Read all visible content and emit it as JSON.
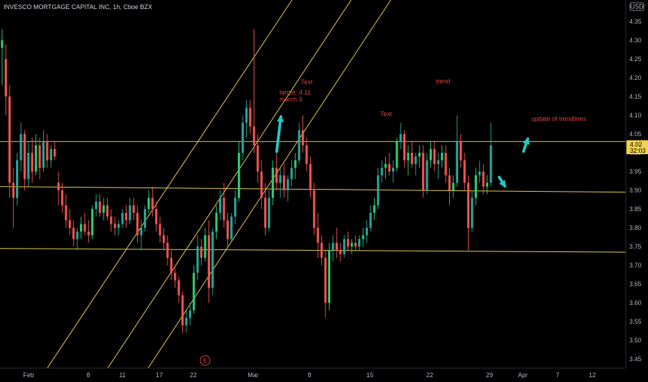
{
  "header": {
    "title": "INVESCO MORTGAGE CAPITAL INC, 1h, Cboe BZX",
    "currency_badge": "USD"
  },
  "colors": {
    "background": "#000000",
    "up_candle": "#26a69a",
    "up_candle_bright": "#2ecc71",
    "down_candle": "#ef5350",
    "trendline": "#f0d34a",
    "annotation_text": "#e0443a",
    "arrow": "#2bc4c4",
    "price_label_bg": "#f0d34a"
  },
  "price_label": {
    "price": "4.02",
    "countdown": "32:03"
  },
  "earnings_marker": {
    "label": "E"
  },
  "chart_data": {
    "type": "candlestick",
    "title": "INVESCO MORTGAGE CAPITAL INC, 1h, Cboe BZX",
    "ylim": [
      3.43,
      4.38
    ],
    "y_ticks": [
      4.35,
      4.3,
      4.25,
      4.2,
      4.15,
      4.1,
      4.05,
      4.0,
      3.95,
      3.9,
      3.85,
      3.8,
      3.75,
      3.7,
      3.65,
      3.6,
      3.55,
      3.5,
      3.45
    ],
    "x_ticks": [
      "Feb",
      "8",
      "11",
      "17",
      "22",
      "Mar",
      "8",
      "15",
      "22",
      "29",
      "Apr",
      "7",
      "12"
    ],
    "horizontal_lines": [
      {
        "price": 4.03
      },
      {
        "from_price": 3.91,
        "to_price": 3.895
      },
      {
        "from_price": 3.745,
        "to_price": 3.735
      }
    ],
    "annotations": [
      "Text",
      "target: 4.11",
      "march 3",
      "trend",
      "Text",
      "update of trendlines"
    ],
    "candles": [
      [
        4.28,
        4.33,
        4.18,
        4.3
      ],
      [
        4.25,
        4.29,
        4.1,
        4.15
      ],
      [
        4.15,
        4.18,
        3.88,
        3.92
      ],
      [
        3.92,
        3.96,
        3.8,
        3.88
      ],
      [
        3.88,
        4.0,
        3.86,
        3.98
      ],
      [
        3.98,
        4.08,
        3.95,
        4.05
      ],
      [
        4.05,
        4.06,
        3.9,
        3.93
      ],
      [
        3.93,
        4.03,
        3.91,
        4.0
      ],
      [
        4.0,
        4.04,
        3.92,
        3.95
      ],
      [
        3.95,
        4.05,
        3.94,
        4.02
      ],
      [
        4.02,
        4.04,
        3.93,
        3.96
      ],
      [
        3.96,
        4.06,
        3.95,
        4.03
      ],
      [
        4.03,
        4.05,
        3.96,
        3.98
      ],
      [
        3.98,
        4.02,
        3.96,
        4.01
      ],
      [
        4.01,
        4.03,
        3.98,
        3.99
      ],
      [
        3.92,
        3.95,
        3.86,
        3.9
      ],
      [
        3.9,
        3.92,
        3.84,
        3.86
      ],
      [
        3.86,
        3.89,
        3.8,
        3.82
      ],
      [
        3.82,
        3.85,
        3.78,
        3.8
      ],
      [
        3.8,
        3.82,
        3.75,
        3.77
      ],
      [
        3.77,
        3.8,
        3.74,
        3.79
      ],
      [
        3.79,
        3.83,
        3.77,
        3.81
      ],
      [
        3.81,
        3.84,
        3.78,
        3.79
      ],
      [
        3.79,
        3.82,
        3.76,
        3.78
      ],
      [
        3.78,
        3.86,
        3.77,
        3.85
      ],
      [
        3.85,
        3.89,
        3.83,
        3.87
      ],
      [
        3.87,
        3.89,
        3.83,
        3.84
      ],
      [
        3.84,
        3.88,
        3.82,
        3.86
      ],
      [
        3.86,
        3.88,
        3.82,
        3.83
      ],
      [
        3.83,
        3.85,
        3.79,
        3.81
      ],
      [
        3.81,
        3.83,
        3.78,
        3.8
      ],
      [
        3.8,
        3.82,
        3.78,
        3.81
      ],
      [
        3.81,
        3.85,
        3.8,
        3.84
      ],
      [
        3.84,
        3.86,
        3.8,
        3.82
      ],
      [
        3.82,
        3.88,
        3.81,
        3.86
      ],
      [
        3.86,
        3.88,
        3.82,
        3.84
      ],
      [
        3.84,
        3.86,
        3.76,
        3.78
      ],
      [
        3.78,
        3.82,
        3.74,
        3.8
      ],
      [
        3.8,
        3.86,
        3.79,
        3.85
      ],
      [
        3.85,
        3.9,
        3.84,
        3.88
      ],
      [
        3.88,
        3.91,
        3.83,
        3.85
      ],
      [
        3.85,
        3.87,
        3.79,
        3.81
      ],
      [
        3.81,
        3.83,
        3.76,
        3.78
      ],
      [
        3.78,
        3.8,
        3.74,
        3.76
      ],
      [
        3.76,
        3.78,
        3.7,
        3.72
      ],
      [
        3.72,
        3.74,
        3.66,
        3.68
      ],
      [
        3.68,
        3.7,
        3.64,
        3.66
      ],
      [
        3.66,
        3.67,
        3.6,
        3.62
      ],
      [
        3.62,
        3.63,
        3.52,
        3.54
      ],
      [
        3.54,
        3.58,
        3.52,
        3.56
      ],
      [
        3.56,
        3.6,
        3.54,
        3.58
      ],
      [
        3.58,
        3.7,
        3.57,
        3.68
      ],
      [
        3.68,
        3.78,
        3.66,
        3.75
      ],
      [
        3.75,
        3.77,
        3.7,
        3.72
      ],
      [
        3.72,
        3.8,
        3.71,
        3.78
      ],
      [
        3.78,
        3.82,
        3.6,
        3.64
      ],
      [
        3.64,
        3.8,
        3.62,
        3.79
      ],
      [
        3.79,
        3.86,
        3.77,
        3.84
      ],
      [
        3.84,
        3.9,
        3.82,
        3.88
      ],
      [
        3.88,
        3.92,
        3.8,
        3.82
      ],
      [
        3.82,
        3.84,
        3.75,
        3.77
      ],
      [
        3.77,
        3.84,
        3.76,
        3.83
      ],
      [
        3.83,
        3.9,
        3.81,
        3.88
      ],
      [
        3.88,
        4.03,
        3.87,
        4.0
      ],
      [
        4.0,
        4.1,
        3.98,
        4.08
      ],
      [
        4.08,
        4.14,
        4.04,
        4.12
      ],
      [
        4.12,
        4.14,
        4.05,
        4.07
      ],
      [
        4.07,
        4.33,
        4.0,
        4.02
      ],
      [
        4.02,
        4.05,
        3.92,
        3.95
      ],
      [
        3.95,
        3.98,
        3.85,
        3.88
      ],
      [
        3.88,
        3.92,
        3.78,
        3.8
      ],
      [
        3.8,
        3.9,
        3.79,
        3.88
      ],
      [
        3.88,
        3.98,
        3.86,
        3.96
      ],
      [
        3.96,
        4.0,
        3.9,
        3.92
      ],
      [
        3.92,
        3.96,
        3.88,
        3.94
      ],
      [
        3.94,
        3.97,
        3.88,
        3.9
      ],
      [
        3.9,
        3.94,
        3.87,
        3.93
      ],
      [
        3.93,
        3.98,
        3.91,
        3.96
      ],
      [
        3.96,
        4.0,
        3.93,
        3.98
      ],
      [
        3.98,
        4.08,
        3.97,
        4.06
      ],
      [
        4.06,
        4.1,
        4.0,
        4.02
      ],
      [
        4.02,
        4.04,
        3.95,
        3.97
      ],
      [
        3.97,
        3.99,
        3.88,
        3.9
      ],
      [
        3.9,
        3.92,
        3.78,
        3.8
      ],
      [
        3.8,
        3.84,
        3.72,
        3.76
      ],
      [
        3.76,
        3.78,
        3.7,
        3.72
      ],
      [
        3.72,
        3.74,
        3.56,
        3.6
      ],
      [
        3.6,
        3.76,
        3.58,
        3.74
      ],
      [
        3.74,
        3.78,
        3.71,
        3.76
      ],
      [
        3.76,
        3.8,
        3.72,
        3.74
      ],
      [
        3.74,
        3.76,
        3.71,
        3.73
      ],
      [
        3.73,
        3.78,
        3.72,
        3.77
      ],
      [
        3.77,
        3.79,
        3.74,
        3.75
      ],
      [
        3.75,
        3.77,
        3.73,
        3.76
      ],
      [
        3.76,
        3.78,
        3.74,
        3.75
      ],
      [
        3.75,
        3.78,
        3.74,
        3.77
      ],
      [
        3.77,
        3.8,
        3.75,
        3.78
      ],
      [
        3.78,
        3.82,
        3.76,
        3.8
      ],
      [
        3.8,
        3.86,
        3.79,
        3.84
      ],
      [
        3.84,
        3.88,
        3.82,
        3.86
      ],
      [
        3.86,
        3.96,
        3.85,
        3.94
      ],
      [
        3.94,
        3.98,
        3.92,
        3.96
      ],
      [
        3.96,
        3.99,
        3.93,
        3.97
      ],
      [
        3.97,
        4.0,
        3.94,
        3.95
      ],
      [
        3.95,
        3.98,
        3.92,
        3.96
      ],
      [
        3.96,
        4.04,
        3.95,
        4.03
      ],
      [
        4.03,
        4.08,
        4.01,
        4.05
      ],
      [
        4.05,
        4.06,
        3.96,
        3.98
      ],
      [
        3.98,
        4.02,
        3.94,
        4.0
      ],
      [
        4.0,
        4.03,
        3.96,
        3.97
      ],
      [
        3.97,
        4.0,
        3.94,
        3.99
      ],
      [
        3.99,
        4.02,
        3.96,
        4.0
      ],
      [
        4.0,
        4.02,
        3.88,
        3.9
      ],
      [
        3.9,
        4.0,
        3.89,
        3.98
      ],
      [
        3.98,
        4.03,
        3.96,
        4.01
      ],
      [
        4.01,
        4.03,
        3.95,
        3.97
      ],
      [
        3.97,
        4.0,
        3.93,
        3.98
      ],
      [
        3.98,
        4.02,
        3.96,
        4.0
      ],
      [
        4.0,
        4.02,
        3.92,
        3.94
      ],
      [
        3.94,
        3.96,
        3.86,
        3.9
      ],
      [
        3.9,
        3.94,
        3.88,
        3.92
      ],
      [
        3.92,
        4.1,
        3.91,
        4.03
      ],
      [
        4.03,
        4.05,
        3.96,
        3.98
      ],
      [
        3.98,
        4.0,
        3.9,
        3.92
      ],
      [
        3.92,
        3.94,
        3.74,
        3.8
      ],
      [
        3.8,
        3.9,
        3.79,
        3.88
      ],
      [
        3.88,
        3.96,
        3.86,
        3.94
      ],
      [
        3.94,
        3.98,
        3.92,
        3.95
      ],
      [
        3.95,
        3.97,
        3.89,
        3.91
      ],
      [
        3.91,
        3.94,
        3.89,
        3.92
      ],
      [
        3.92,
        4.08,
        3.91,
        4.02
      ]
    ]
  }
}
